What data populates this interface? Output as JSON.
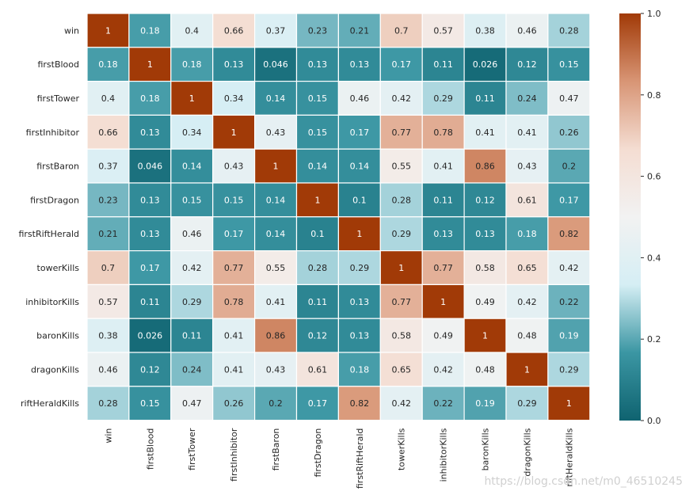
{
  "chart_data": {
    "type": "heatmap",
    "row_labels": [
      "win",
      "firstBlood",
      "firstTower",
      "firstInhibitor",
      "firstBaron",
      "firstDragon",
      "firstRiftHerald",
      "towerKills",
      "inhibitorKills",
      "baronKills",
      "dragonKills",
      "riftHeraldKills"
    ],
    "col_labels": [
      "win",
      "firstBlood",
      "firstTower",
      "firstInhibitor",
      "firstBaron",
      "firstDragon",
      "firstRiftHerald",
      "towerKills",
      "inhibitorKills",
      "baronKills",
      "dragonKills",
      "riftHeraldKills"
    ],
    "values": [
      [
        1,
        0.18,
        0.4,
        0.66,
        0.37,
        0.23,
        0.21,
        0.7,
        0.57,
        0.38,
        0.46,
        0.28
      ],
      [
        0.18,
        1,
        0.18,
        0.13,
        0.046,
        0.13,
        0.13,
        0.17,
        0.11,
        0.026,
        0.12,
        0.15
      ],
      [
        0.4,
        0.18,
        1,
        0.34,
        0.14,
        0.15,
        0.46,
        0.42,
        0.29,
        0.11,
        0.24,
        0.47
      ],
      [
        0.66,
        0.13,
        0.34,
        1,
        0.43,
        0.15,
        0.17,
        0.77,
        0.78,
        0.41,
        0.41,
        0.26
      ],
      [
        0.37,
        0.046,
        0.14,
        0.43,
        1,
        0.14,
        0.14,
        0.55,
        0.41,
        0.86,
        0.43,
        0.2
      ],
      [
        0.23,
        0.13,
        0.15,
        0.15,
        0.14,
        1,
        0.1,
        0.28,
        0.11,
        0.12,
        0.61,
        0.17
      ],
      [
        0.21,
        0.13,
        0.46,
        0.17,
        0.14,
        0.1,
        1,
        0.29,
        0.13,
        0.13,
        0.18,
        0.82
      ],
      [
        0.7,
        0.17,
        0.42,
        0.77,
        0.55,
        0.28,
        0.29,
        1,
        0.77,
        0.58,
        0.65,
        0.42
      ],
      [
        0.57,
        0.11,
        0.29,
        0.78,
        0.41,
        0.11,
        0.13,
        0.77,
        1,
        0.49,
        0.42,
        0.22
      ],
      [
        0.38,
        0.026,
        0.11,
        0.41,
        0.86,
        0.12,
        0.13,
        0.58,
        0.49,
        1,
        0.48,
        0.19
      ],
      [
        0.46,
        0.12,
        0.24,
        0.41,
        0.43,
        0.61,
        0.18,
        0.65,
        0.42,
        0.48,
        1,
        0.29
      ],
      [
        0.28,
        0.15,
        0.47,
        0.26,
        0.2,
        0.17,
        0.82,
        0.42,
        0.22,
        0.19,
        0.29,
        1
      ]
    ],
    "vmin": 0.0,
    "vmax": 1.0,
    "colorbar_ticks": [
      "0.0",
      "0.2",
      "0.4",
      "0.6",
      "0.8",
      "1.0"
    ],
    "annotations": true,
    "colormap_stops": [
      "#0f6370",
      "#3b96a3",
      "#d5eef4",
      "#f2f2f2",
      "#f4ddd2",
      "#d89575",
      "#a13a07"
    ],
    "grid_line_color": "#ffffff"
  },
  "watermark": "https://blog.csdn.net/m0_46510245"
}
